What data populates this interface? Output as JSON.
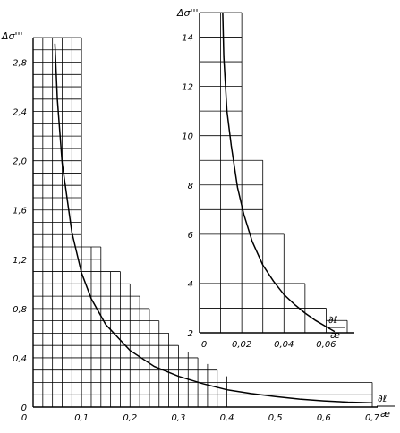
{
  "chart_data": [
    {
      "type": "line",
      "ylabel": "Δσ'''",
      "xlabel": "∂ℓ / æ",
      "xlim": [
        0,
        0.7
      ],
      "ylim": [
        0,
        3.0
      ],
      "x_ticks": [
        0,
        0.1,
        0.2,
        0.3,
        0.4,
        0.5,
        0.6,
        0.7
      ],
      "x_tick_labels": [
        "0",
        "0,1",
        "0,2",
        "0,3",
        "0,4",
        "0,5",
        "0,6",
        "0,7"
      ],
      "y_ticks": [
        0,
        0.4,
        0.8,
        1.2,
        1.6,
        2.0,
        2.4,
        2.8
      ],
      "y_tick_labels": [
        "0",
        "0,4",
        "0,8",
        "1,2",
        "1,6",
        "2,0",
        "2,4",
        "2,8"
      ],
      "grid": true,
      "x": [
        0.045,
        0.05,
        0.06,
        0.08,
        0.1,
        0.12,
        0.15,
        0.2,
        0.25,
        0.3,
        0.35,
        0.4,
        0.45,
        0.5,
        0.55,
        0.6,
        0.65,
        0.7
      ],
      "y": [
        2.95,
        2.5,
        1.98,
        1.42,
        1.09,
        0.88,
        0.67,
        0.46,
        0.33,
        0.25,
        0.19,
        0.14,
        0.11,
        0.085,
        0.065,
        0.05,
        0.04,
        0.035
      ]
    },
    {
      "type": "line",
      "ylabel": "Δσ'''",
      "xlabel": "∂ℓ / æ",
      "xlim": [
        0,
        0.07
      ],
      "ylim": [
        2,
        15
      ],
      "x_ticks": [
        0,
        0.02,
        0.04,
        0.06
      ],
      "x_tick_labels": [
        "0",
        "0,02",
        "0,04",
        "0,06"
      ],
      "y_ticks": [
        2,
        4,
        6,
        8,
        10,
        12,
        14
      ],
      "y_tick_labels": [
        "2",
        "4",
        "6",
        "8",
        "10",
        "12",
        "14"
      ],
      "grid": true,
      "x": [
        0.011,
        0.0115,
        0.013,
        0.015,
        0.018,
        0.021,
        0.025,
        0.03,
        0.035,
        0.04,
        0.045,
        0.05,
        0.055,
        0.06,
        0.064
      ],
      "y": [
        15.0,
        13.2,
        11.0,
        9.6,
        7.9,
        6.8,
        5.7,
        4.75,
        4.1,
        3.55,
        3.15,
        2.8,
        2.5,
        2.25,
        2.05
      ]
    }
  ]
}
